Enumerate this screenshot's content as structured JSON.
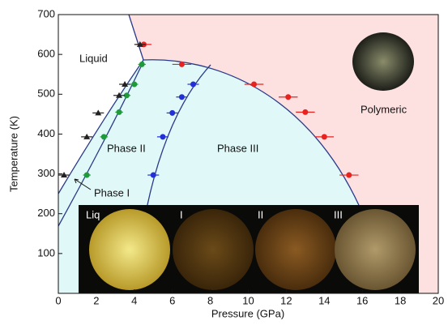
{
  "chart_data": {
    "type": "scatter",
    "x_label": "Pressure (GPa)",
    "y_label": "Temperature (K)",
    "xlim": [
      0,
      20
    ],
    "xticks": [
      0,
      2,
      4,
      6,
      8,
      10,
      12,
      14,
      16,
      18,
      20
    ],
    "ylim": [
      0,
      700
    ],
    "yticks": [
      100,
      200,
      300,
      400,
      500,
      600,
      700
    ],
    "annotations": [
      "Liquid",
      "Phase II",
      "Phase III",
      "Phase I",
      "Polymeric",
      "Liq",
      "I",
      "II",
      "III"
    ],
    "series": [
      {
        "color": "#e8231f",
        "marker": "circle",
        "x": [
          4.5,
          6.5,
          10.3,
          12.1,
          13.0,
          14.0,
          15.3
        ],
        "values": [
          625,
          575,
          525,
          493,
          455,
          393,
          297
        ],
        "xerr": [
          0.4,
          0.5,
          0.5,
          0.5,
          0.5,
          0.5,
          0.5
        ]
      },
      {
        "color": "#2230d8",
        "marker": "circle",
        "x": [
          5.0,
          5.5,
          6.0,
          6.5,
          7.1
        ],
        "values": [
          297,
          393,
          453,
          493,
          525
        ],
        "xerr": [
          0.3,
          0.3,
          0.3,
          0.3,
          0.3
        ]
      },
      {
        "color": "#1e9a3a",
        "marker": "circle",
        "x": [
          1.5,
          2.4,
          3.2,
          3.6,
          4.0,
          4.4
        ],
        "values": [
          297,
          393,
          455,
          497,
          525,
          575
        ],
        "xerr": [
          0.2,
          0.2,
          0.2,
          0.2,
          0.2,
          0.2
        ]
      },
      {
        "color": "#222222",
        "marker": "triangle",
        "x": [
          0.3,
          1.5,
          2.1,
          3.2,
          3.5,
          4.3
        ],
        "values": [
          297,
          393,
          453,
          497,
          525,
          625
        ],
        "xerr": [
          0.3,
          0.3,
          0.3,
          0.3,
          0.3,
          0.3
        ]
      }
    ]
  }
}
